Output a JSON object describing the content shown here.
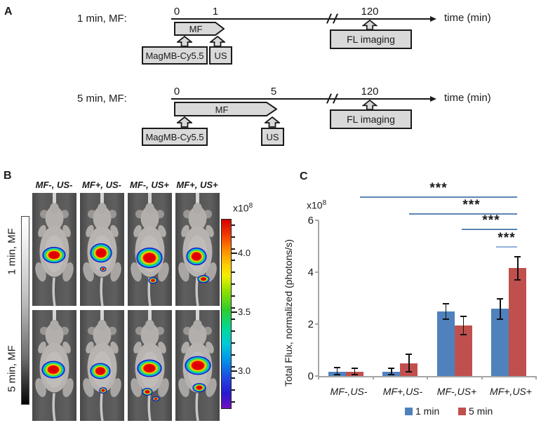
{
  "panel_a": {
    "label": "A",
    "timelines": [
      {
        "name": "1 min, MF:",
        "tick0": "0",
        "tick1": "1",
        "tick2": "120",
        "axis_label": "time (min)",
        "mf_label": "MF",
        "agent_label": "MagMB-Cy5.5",
        "us_label": "US",
        "imaging_label": "FL imaging"
      },
      {
        "name": "5 min, MF:",
        "tick0": "0",
        "tick1": "5",
        "tick2": "120",
        "axis_label": "time (min)",
        "mf_label": "MF",
        "agent_label": "MagMB-Cy5.5",
        "us_label": "US",
        "imaging_label": "FL imaging"
      }
    ]
  },
  "panel_b": {
    "label": "B",
    "column_labels": [
      "MF-, US-",
      "MF+, US-",
      "MF-, US+",
      "MF+, US+"
    ],
    "row_labels": [
      "1 min, MF",
      "5 min, MF"
    ],
    "colorbar": {
      "multiplier": "x10",
      "exponent": "8",
      "tick_labels": [
        "4.0",
        "3.5",
        "3.0"
      ]
    }
  },
  "panel_c": {
    "label": "C",
    "multiplier": "x10",
    "exponent": "8"
  },
  "chart_data": {
    "type": "bar",
    "categories": [
      "MF-,US-",
      "MF+,US-",
      "MF-,US+",
      "MF+,US+"
    ],
    "series": [
      {
        "name": "1 min",
        "color": "#4F81BD",
        "values": [
          0.15,
          0.15,
          2.5,
          2.6
        ],
        "errors": [
          0.2,
          0.15,
          0.3,
          0.4
        ]
      },
      {
        "name": "5 min",
        "color": "#C0504D",
        "values": [
          0.15,
          0.5,
          1.95,
          4.15
        ],
        "errors": [
          0.15,
          0.35,
          0.35,
          0.45
        ]
      }
    ],
    "title": "",
    "xlabel": "",
    "ylabel": "Total Flux, normalized (photons/s)",
    "ylim": [
      0,
      6
    ],
    "yticks": [
      0,
      2,
      4,
      6
    ],
    "unit_multiplier": "x10^8",
    "grid": false,
    "legend_position": "bottom",
    "significance_bars": [
      {
        "label": "***",
        "between": [
          "MF-,US-",
          "MF+,US+"
        ]
      },
      {
        "label": "***",
        "between": [
          "MF+,US-",
          "MF+,US+"
        ]
      },
      {
        "label": "***",
        "between": [
          "MF-,US+",
          "MF+,US+"
        ]
      },
      {
        "label": "***",
        "between": [
          "MF+,US+ 1 min",
          "MF+,US+ 5 min"
        ]
      }
    ]
  }
}
